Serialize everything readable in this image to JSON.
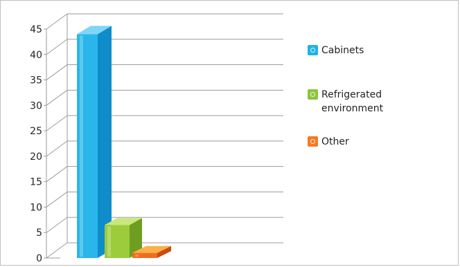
{
  "chart_data": {
    "type": "bar",
    "categories": [
      "Cabinets",
      "Refrigerated environment",
      "Other"
    ],
    "values": [
      44,
      6.5,
      1
    ],
    "ylim": [
      0,
      45
    ],
    "yticks": [
      "0",
      "5",
      "10",
      "15",
      "20",
      "25",
      "30",
      "35",
      "40",
      "45"
    ],
    "grid": true,
    "legend": {
      "placement": "right",
      "entries": [
        {
          "label": "Cabinets",
          "color": "#1fb3e5"
        },
        {
          "label": "Refrigerated\nenvironment",
          "color": "#8cc63f"
        },
        {
          "label": "Other",
          "color": "#f47a20"
        }
      ]
    },
    "colors": {
      "Cabinets": {
        "front": "#29b6ea",
        "side": "#0f8cc9",
        "top": "#7fd6f7"
      },
      "Refrigerated environment": {
        "front": "#9ccc3c",
        "side": "#6e9e1f",
        "top": "#c7e87a"
      },
      "Other": {
        "front": "#f26b1d",
        "side": "#c94d0e",
        "top": "#fbb04a"
      }
    }
  }
}
